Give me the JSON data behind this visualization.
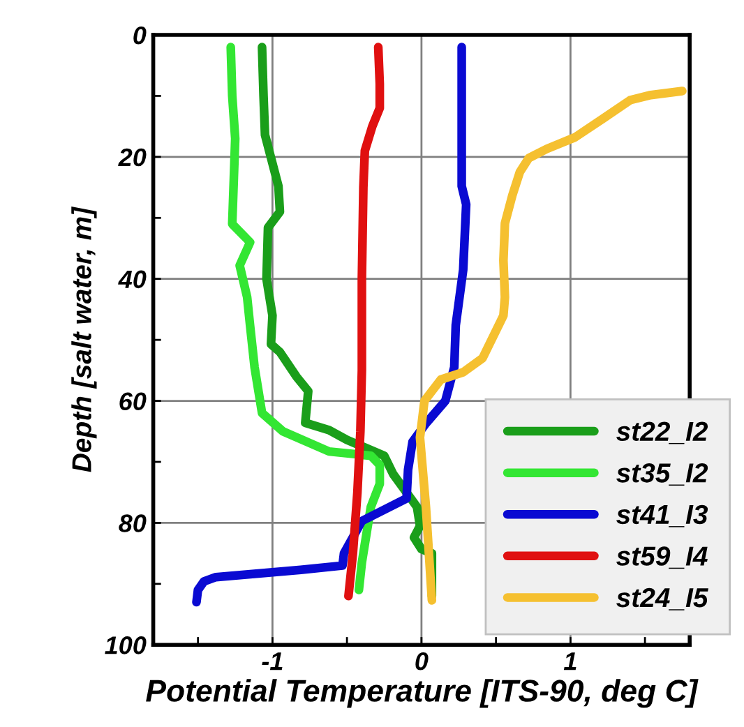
{
  "chart_data": {
    "type": "line",
    "xlabel": "Potential Temperature [ITS-90, deg C]",
    "ylabel": "Depth [salt water, m]",
    "xlim": [
      -1.8,
      1.8
    ],
    "ylim": [
      100,
      0
    ],
    "xticks": [
      {
        "value": -1.5,
        "label": null
      },
      -1,
      {
        "value": -0.5,
        "label": null
      },
      0,
      {
        "value": 0.5,
        "label": null
      },
      1,
      {
        "value": 1.5,
        "label": null
      }
    ],
    "yticks": [
      0,
      {
        "value": 10,
        "label": null
      },
      20,
      {
        "value": 30,
        "label": null
      },
      40,
      {
        "value": 50,
        "label": null
      },
      60,
      {
        "value": 70,
        "label": null
      },
      80,
      {
        "value": 90,
        "label": null
      },
      100
    ],
    "grid": true,
    "legend": "bottom right",
    "marker": "none",
    "line_style": "solid",
    "series": [
      {
        "name": "st22_I2",
        "color": "#1a9e1a",
        "x": [
          -1.07,
          -1.06,
          -1.05,
          -0.96,
          -0.95,
          -1.03,
          -1.04,
          -1.0,
          -1.01,
          -0.95,
          -0.84,
          -0.76,
          -0.78,
          -0.62,
          -0.5,
          -0.25,
          -0.19,
          -0.03,
          -0.01,
          -0.05,
          0.0,
          0.07,
          0.07,
          0.07
        ],
        "values": [
          2,
          10,
          16.4,
          24.8,
          29,
          31.6,
          40,
          46,
          50.7,
          52,
          56,
          58.4,
          63.6,
          64.8,
          66.4,
          69,
          72,
          77.4,
          80.5,
          82.4,
          84.3,
          85,
          90.4,
          92
        ]
      },
      {
        "name": "st35_I2",
        "color": "#33e633",
        "x": [
          -1.28,
          -1.27,
          -1.25,
          -1.27,
          -1.15,
          -1.22,
          -1.17,
          -1.15,
          -1.12,
          -1.07,
          -0.93,
          -0.62,
          -0.34,
          -0.28,
          -0.28,
          -0.34,
          -0.4,
          -0.42
        ],
        "values": [
          2,
          10,
          17,
          31,
          34,
          37.8,
          43,
          47.7,
          54.5,
          62,
          65,
          68.3,
          69,
          70.5,
          73.6,
          77.4,
          86.5,
          91
        ]
      },
      {
        "name": "st41_I3",
        "color": "#0a0ad2",
        "x": [
          0.27,
          0.27,
          0.27,
          0.3,
          0.28,
          0.23,
          0.22,
          0.16,
          0.03,
          -0.06,
          -0.09,
          -0.1,
          -0.4,
          -0.47,
          -0.52,
          -0.53,
          -0.81,
          -1.38,
          -1.46,
          -1.5,
          -1.51
        ],
        "values": [
          2,
          12,
          24.8,
          27.8,
          38.5,
          47.6,
          54.5,
          60,
          63.7,
          66.7,
          71.3,
          76,
          79.7,
          82.8,
          85,
          87,
          87.7,
          88.9,
          89.6,
          91,
          93
        ]
      },
      {
        "name": "st59_I4",
        "color": "#e01010",
        "x": [
          -0.29,
          -0.28,
          -0.28,
          -0.33,
          -0.38,
          -0.39,
          -0.4,
          -0.4,
          -0.41,
          -0.43,
          -0.46,
          -0.49
        ],
        "values": [
          2,
          8,
          12,
          15,
          19,
          25,
          40,
          55,
          65,
          75,
          85,
          92
        ]
      },
      {
        "name": "st24_I5",
        "color": "#f5c030",
        "x": [
          1.75,
          1.53,
          1.4,
          1.22,
          1.03,
          0.84,
          0.72,
          0.66,
          0.61,
          0.56,
          0.55,
          0.56,
          0.55,
          0.53,
          0.41,
          0.28,
          0.13,
          0.02,
          -0.01,
          0.03,
          0.07
        ],
        "values": [
          9.2,
          9.9,
          10.7,
          13.7,
          16.8,
          18.7,
          20.2,
          22.5,
          26.3,
          30.9,
          37,
          43,
          46,
          47,
          53,
          55.3,
          56.5,
          60,
          66,
          77.4,
          92.7
        ]
      }
    ]
  }
}
